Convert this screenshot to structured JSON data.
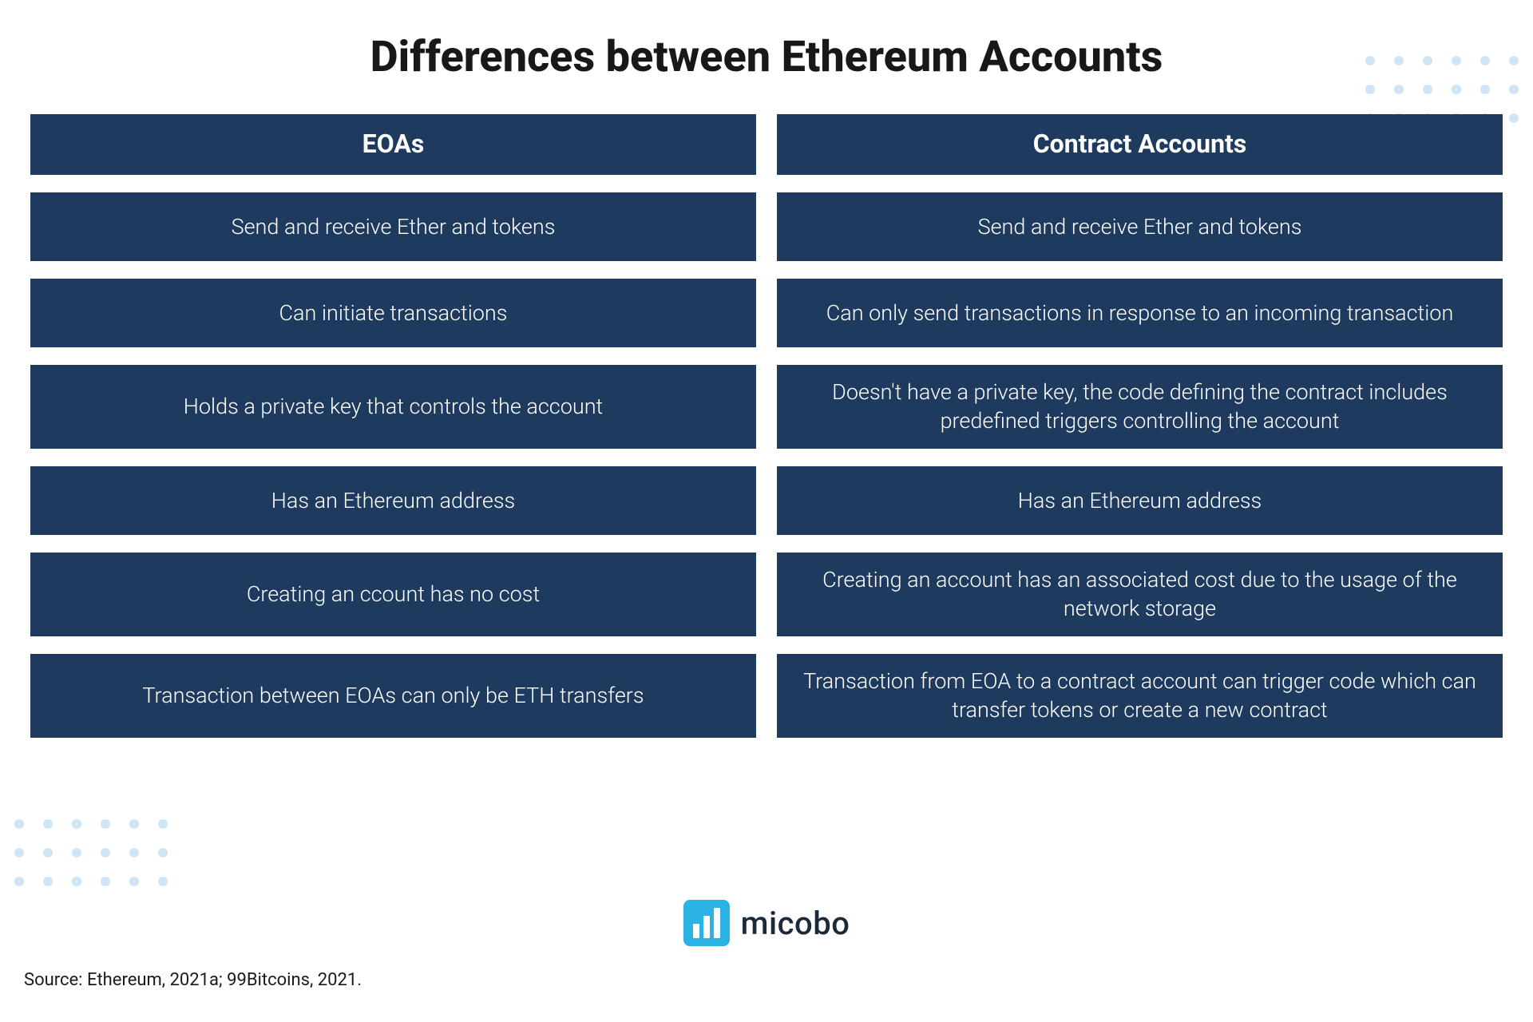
{
  "title": "Differences between Ethereum Accounts",
  "colors": {
    "cell_bg": "#1e3a5f",
    "cell_text": "#ffffff",
    "page_bg": "#ffffff",
    "title_color": "#181818",
    "dot_color": "#cfe6f7",
    "logo_bg": "#2bb3e6",
    "logo_text_color": "#1a2a3a",
    "source_color": "#1a1a1a"
  },
  "typography": {
    "title_fontsize": 54,
    "title_weight": 800,
    "header_fontsize": 32,
    "header_weight": 700,
    "cell_fontsize": 27,
    "cell_weight": 300,
    "logo_fontsize": 40,
    "source_fontsize": 22
  },
  "layout": {
    "column_gap": 26,
    "row_gap": 22,
    "cell_min_height": 86,
    "header_min_height": 76,
    "dot_size": 12,
    "dot_gap": 24,
    "dot_grid": "9x3"
  },
  "table": {
    "columns": [
      {
        "header": "EOAs"
      },
      {
        "header": "Contract Accounts"
      }
    ],
    "rows": [
      [
        "Send and receive Ether and tokens",
        "Send and receive Ether and tokens"
      ],
      [
        "Can initiate transactions",
        "Can only send transactions in response to an incoming transaction"
      ],
      [
        "Holds a private key that controls the account",
        "Doesn't have a private key, the code defining the contract includes predefined triggers controlling the account"
      ],
      [
        "Has an Ethereum address",
        "Has an Ethereum address"
      ],
      [
        "Creating an ccount has no cost",
        "Creating an account has an associated cost due to the usage of the network storage"
      ],
      [
        "Transaction between EOAs can only be ETH transfers",
        "Transaction from EOA to a contract account can trigger code which can transfer tokens or create a new contract"
      ]
    ]
  },
  "logo": {
    "name": "micobo",
    "bars": [
      18,
      28,
      38
    ]
  },
  "source": "Source: Ethereum, 2021a; 99Bitcoins, 2021."
}
